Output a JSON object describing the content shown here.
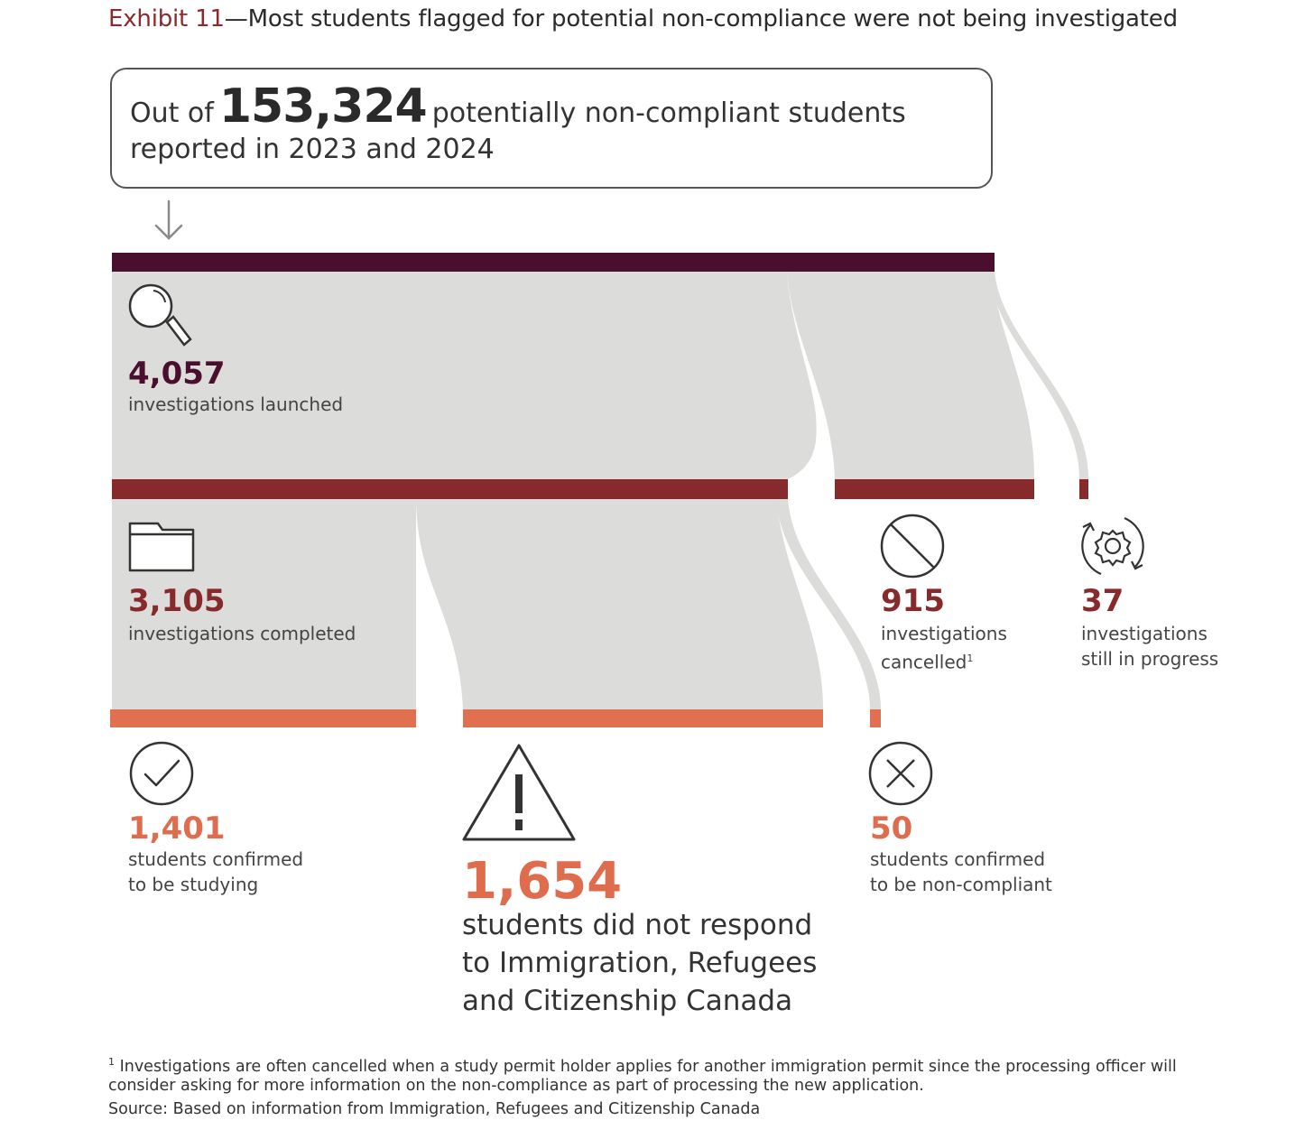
{
  "exhibit": {
    "label": "Exhibit 11",
    "title": "—Most students flagged for potential non-compliance were not being investigated"
  },
  "summary": {
    "prefix": "Out of",
    "total": "153,324",
    "suffix": "potentially non-compliant students",
    "line2": "reported in 2023 and 2024"
  },
  "colors": {
    "level1": "#4a0e2e",
    "level2": "#862a2b",
    "level3": "#e07050",
    "flow": "#dcdcda"
  },
  "nodes": {
    "launched": {
      "value": "4,057",
      "label": "investigations launched",
      "icon": "magnifier-icon"
    },
    "completed": {
      "value": "3,105",
      "label": "investigations completed",
      "icon": "folder-icon"
    },
    "cancelled": {
      "value": "915",
      "label_line1": "investigations",
      "label_line2": "cancelled",
      "footnote_mark": "1",
      "icon": "prohibited-icon"
    },
    "in_progress": {
      "value": "37",
      "label_line1": "investigations",
      "label_line2": "still in progress",
      "icon": "gear-cycle-icon"
    },
    "studying": {
      "value": "1,401",
      "label_line1": "students confirmed",
      "label_line2": "to be studying",
      "icon": "checkmark-icon"
    },
    "no_response": {
      "value": "1,654",
      "label_line1": "students did not respond",
      "label_line2": "to Immigration, Refugees",
      "label_line3": "and Citizenship Canada",
      "icon": "warning-icon"
    },
    "non_compliant": {
      "value": "50",
      "label_line1": "students confirmed",
      "label_line2": "to be non-compliant",
      "icon": "x-circle-icon"
    }
  },
  "footnote": {
    "mark": "1",
    "text": "Investigations are often cancelled when a study permit holder applies for another immigration permit since the processing officer will consider asking for more information on the non-compliance as part of processing the new application."
  },
  "source": "Source: Based on information from Immigration, Refugees and Citizenship Canada"
}
